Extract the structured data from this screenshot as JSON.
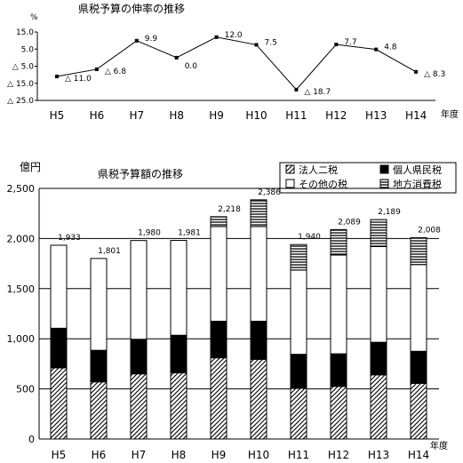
{
  "chart_data": [
    {
      "type": "line",
      "title": "県税予算の伸率の推移",
      "ylabel": "%",
      "xlabel": "年度",
      "categories": [
        "H5",
        "H6",
        "H7",
        "H8",
        "H9",
        "H10",
        "H11",
        "H12",
        "H13",
        "H14"
      ],
      "values": [
        -11.0,
        -6.8,
        9.9,
        0.0,
        12.0,
        7.5,
        -18.7,
        7.7,
        4.8,
        -8.3
      ],
      "value_labels": [
        "△ 11.0",
        "△ 6.8",
        "9.9",
        "0.0",
        "12.0",
        "7.5",
        "△ 18.7",
        "7.7",
        "4.8",
        "△ 8.3"
      ],
      "y_ticks": [
        15.0,
        5.0,
        -5.0,
        -15.0,
        -25.0
      ],
      "y_tick_labels": [
        "15.0",
        "5.0",
        "△ 5.0",
        "△ 15.0",
        "△ 25.0"
      ],
      "ylim": [
        -25,
        15
      ],
      "grid": false
    },
    {
      "type": "bar",
      "stacked": true,
      "title": "県税予算額の推移",
      "ylabel": "億円",
      "xlabel": "年度",
      "categories": [
        "H5",
        "H6",
        "H7",
        "H8",
        "H9",
        "H10",
        "H11",
        "H12",
        "H13",
        "H14"
      ],
      "totals": [
        1933,
        1801,
        1980,
        1981,
        2218,
        2386,
        1940,
        2089,
        2189,
        2008
      ],
      "total_labels": [
        "1,933",
        "1,801",
        "1,980",
        "1,981",
        "2,218",
        "2,386",
        "1,940",
        "2,089",
        "2,189",
        "2,008"
      ],
      "series": [
        {
          "name": "法人二税",
          "pattern": "diagonal",
          "values": [
            710,
            570,
            650,
            660,
            810,
            795,
            505,
            525,
            640,
            555
          ]
        },
        {
          "name": "個人県民税",
          "pattern": "solid",
          "values": [
            395,
            315,
            345,
            375,
            365,
            380,
            340,
            325,
            325,
            320
          ]
        },
        {
          "name": "その他の税",
          "pattern": "white",
          "values": [
            828,
            916,
            985,
            946,
            945,
            945,
            840,
            985,
            955,
            865
          ]
        },
        {
          "name": "地方消費税",
          "pattern": "horizontal",
          "values": [
            0,
            0,
            0,
            0,
            98,
            266,
            255,
            254,
            269,
            268
          ]
        }
      ],
      "legend_symbols": [
        "▨",
        "■",
        "□",
        "▤"
      ],
      "y_ticks": [
        0,
        500,
        1000,
        1500,
        2000,
        2500
      ],
      "y_tick_labels": [
        "0",
        "500",
        "1,000",
        "1,500",
        "2,000",
        "2,500"
      ],
      "ylim": [
        0,
        2500
      ],
      "grid": true,
      "legend_position": "top-right"
    }
  ]
}
